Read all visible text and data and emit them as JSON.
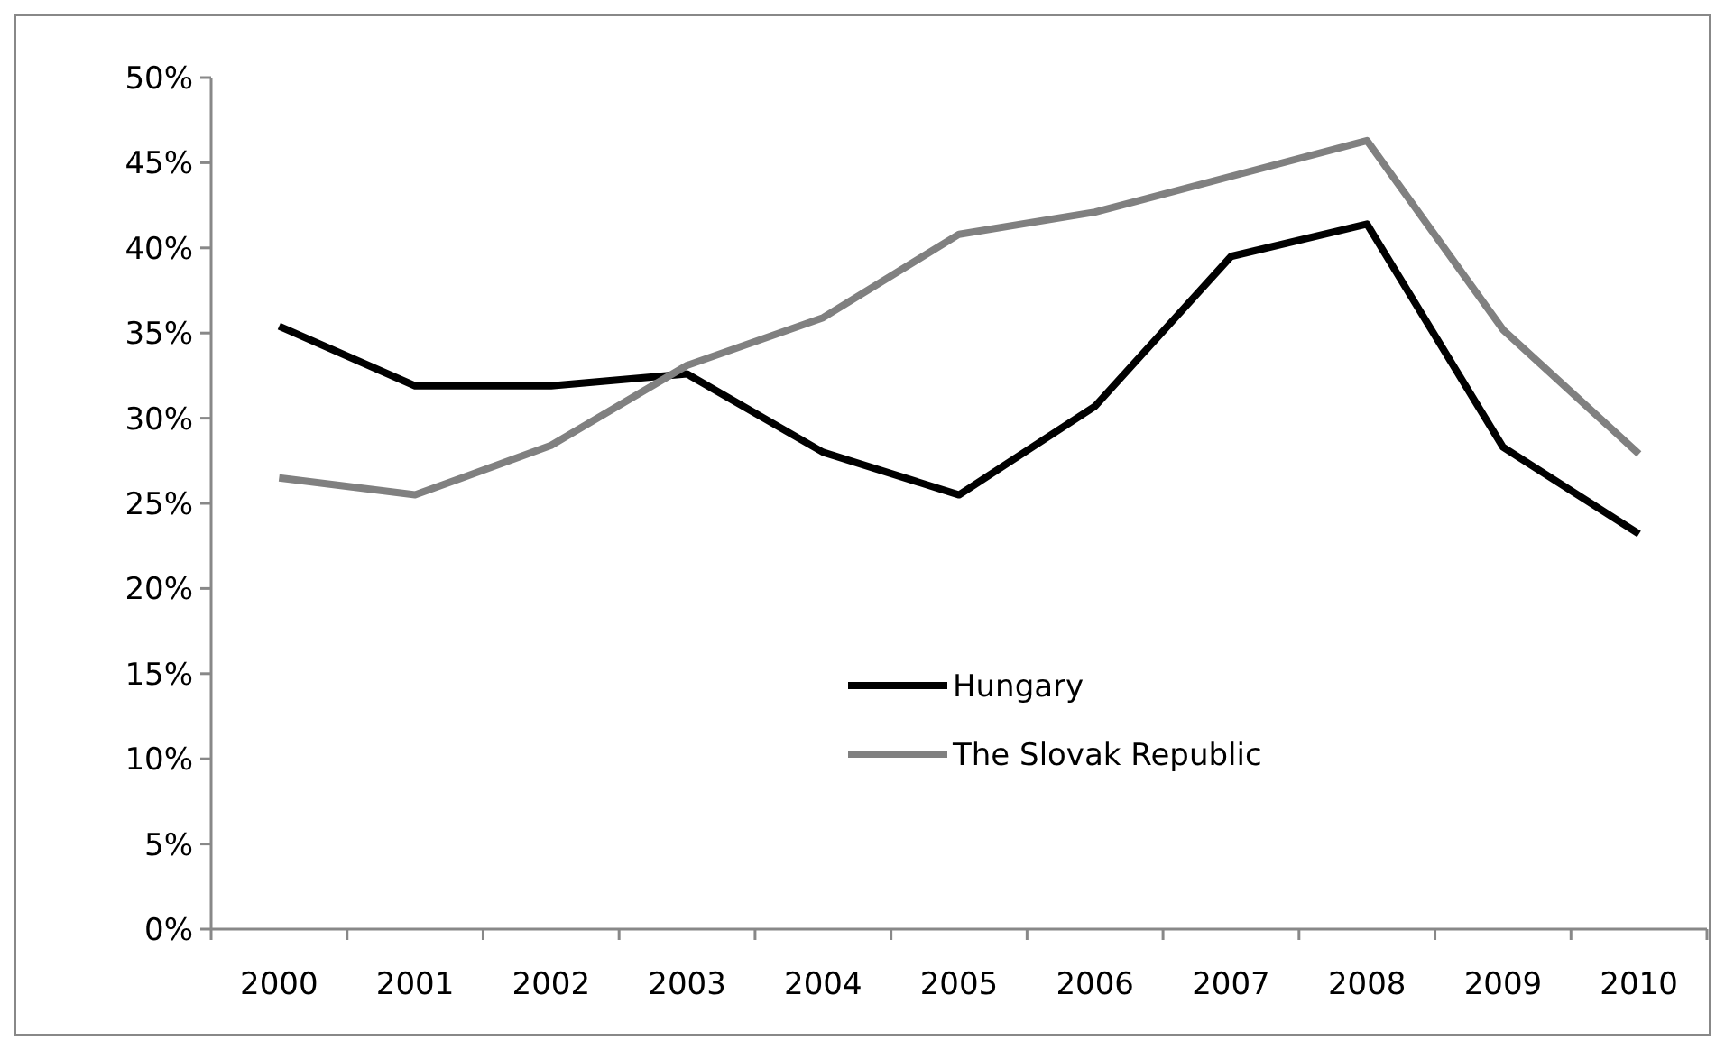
{
  "chart_data": {
    "type": "line",
    "categories": [
      "2000",
      "2001",
      "2002",
      "2003",
      "2004",
      "2005",
      "2006",
      "2007",
      "2008",
      "2009",
      "2010"
    ],
    "series": [
      {
        "name": "Hungary",
        "color": "#000000",
        "values": [
          35.4,
          31.9,
          31.9,
          32.6,
          28.0,
          25.5,
          30.7,
          39.5,
          41.4,
          28.3,
          23.2
        ]
      },
      {
        "name": "The Slovak Republic",
        "color": "#808080",
        "values": [
          26.5,
          25.5,
          28.4,
          33.1,
          35.9,
          40.8,
          42.1,
          44.2,
          46.3,
          35.2,
          27.9
        ]
      }
    ],
    "ylim": [
      0,
      50
    ],
    "yticks": [
      {
        "value": 0,
        "label": "0%"
      },
      {
        "value": 5,
        "label": "5%"
      },
      {
        "value": 10,
        "label": "10%"
      },
      {
        "value": 15,
        "label": "15%"
      },
      {
        "value": 20,
        "label": "20%"
      },
      {
        "value": 25,
        "label": "25%"
      },
      {
        "value": 30,
        "label": "30%"
      },
      {
        "value": 35,
        "label": "35%"
      },
      {
        "value": 40,
        "label": "40%"
      },
      {
        "value": 45,
        "label": "45%"
      },
      {
        "value": 50,
        "label": "50%"
      }
    ],
    "grid": false,
    "legend": "bottom",
    "marker": "none",
    "line_style": "solid"
  }
}
